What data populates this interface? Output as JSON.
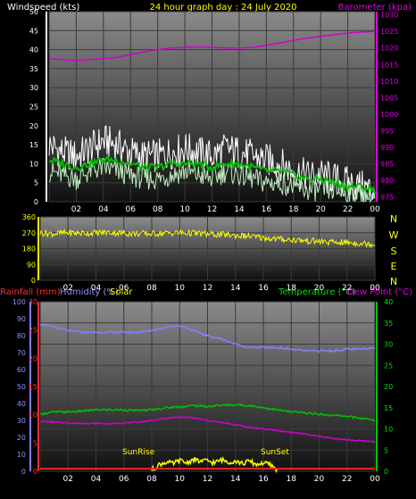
{
  "header": {
    "wind_label": "Windspeed (kts)",
    "title": "24 hour graph day : 24 July 2020",
    "baro_label": "Barometer (kpa)"
  },
  "bottom_header": {
    "rain_label": "Rainfall (mm)",
    "hum_label": "Humidity (%)",
    "solar_label": "Solar",
    "temp_label": "Temperature (°C)",
    "dew_label": "Dew Point (°C)"
  },
  "direction_letters": [
    "N",
    "W",
    "S",
    "E",
    "N"
  ],
  "annotations": {
    "sunrise": "SunRise",
    "sunset": "SunSet"
  },
  "colors": {
    "wind_gust": "#ffffff",
    "wind_avg": "#bfeebf",
    "wind_trend": "#00c000",
    "barometer": "#d000d0",
    "direction": "#ffff00",
    "humidity": "#8080ff",
    "temperature": "#00c000",
    "dewpoint": "#d000d0",
    "rainfall": "#ff2020",
    "solar": "#ffff00",
    "direction_letters": "#ffff00"
  },
  "chart_data": [
    {
      "type": "line",
      "name": "wind-barometer",
      "x_ticks": [
        "02",
        "04",
        "06",
        "08",
        "10",
        "12",
        "14",
        "16",
        "18",
        "20",
        "22",
        "00"
      ],
      "left_axis": {
        "label": "Windspeed (kts)",
        "ticks": [
          0,
          5,
          10,
          15,
          20,
          25,
          30,
          35,
          40,
          45,
          50
        ],
        "ylim": [
          0,
          50
        ]
      },
      "right_axis": {
        "label": "Barometer (kpa)",
        "ticks": [
          975,
          980,
          985,
          990,
          995,
          1000,
          1005,
          1010,
          1015,
          1020,
          1025,
          1030
        ],
        "ylim": [
          973.5,
          1031
        ]
      },
      "series": [
        {
          "key": "gust",
          "axis": "left",
          "x": [
            0,
            1,
            2,
            3,
            4,
            5,
            6,
            7,
            8,
            9,
            10,
            11,
            12,
            13,
            14,
            15,
            16,
            17,
            18,
            19,
            20,
            21,
            22,
            23,
            24
          ],
          "values": [
            15,
            13,
            12,
            14,
            16,
            15,
            13,
            12,
            12,
            13,
            14,
            13,
            12,
            14,
            13,
            12,
            11,
            10,
            8,
            7,
            7,
            6,
            5,
            4,
            3
          ]
        },
        {
          "key": "avg",
          "axis": "left",
          "x": [
            0,
            1,
            2,
            3,
            4,
            5,
            6,
            7,
            8,
            9,
            10,
            11,
            12,
            13,
            14,
            15,
            16,
            17,
            18,
            19,
            20,
            21,
            22,
            23,
            24
          ],
          "values": [
            8,
            7,
            6,
            8,
            9,
            8,
            7,
            6,
            6,
            7,
            8,
            7,
            6,
            8,
            7,
            6,
            5,
            5,
            4,
            3,
            3,
            3,
            2,
            2,
            1
          ]
        },
        {
          "key": "trend",
          "axis": "left",
          "x": [
            0,
            1,
            2,
            3,
            4,
            5,
            6,
            7,
            8,
            9,
            10,
            11,
            12,
            13,
            14,
            15,
            16,
            17,
            18,
            19,
            20,
            21,
            22,
            23,
            24
          ],
          "values": [
            11,
            10,
            9,
            10,
            11,
            11,
            10,
            9,
            9,
            10,
            10,
            10,
            9,
            10,
            10,
            9,
            8,
            8,
            7,
            6,
            6,
            5,
            4,
            4,
            3
          ]
        },
        {
          "key": "barometer",
          "axis": "right",
          "x": [
            0,
            1,
            2,
            3,
            4,
            5,
            6,
            7,
            8,
            9,
            10,
            11,
            12,
            13,
            14,
            15,
            16,
            17,
            18,
            19,
            20,
            21,
            22,
            23,
            24
          ],
          "values": [
            1016.8,
            1016.5,
            1016.2,
            1016.5,
            1016.8,
            1017.2,
            1018,
            1018.8,
            1019.5,
            1020,
            1020.2,
            1020.3,
            1020.2,
            1020,
            1020,
            1020.2,
            1020.8,
            1021.5,
            1022.3,
            1023,
            1023.5,
            1024,
            1024.5,
            1024.8,
            1025
          ]
        }
      ]
    },
    {
      "type": "line",
      "name": "wind-direction",
      "x_ticks": [
        "02",
        "04",
        "06",
        "08",
        "10",
        "12",
        "14",
        "16",
        "18",
        "20",
        "22",
        "00"
      ],
      "left_axis": {
        "ticks": [
          0,
          90,
          180,
          270,
          360
        ],
        "ylim": [
          0,
          360
        ]
      },
      "series": [
        {
          "key": "direction",
          "x": [
            0,
            1,
            2,
            3,
            4,
            5,
            6,
            7,
            8,
            9,
            10,
            11,
            12,
            13,
            14,
            15,
            16,
            17,
            18,
            19,
            20,
            21,
            22,
            23,
            24
          ],
          "values": [
            270,
            265,
            270,
            268,
            270,
            272,
            268,
            265,
            265,
            268,
            270,
            268,
            262,
            260,
            255,
            250,
            240,
            235,
            230,
            225,
            220,
            215,
            215,
            210,
            205
          ]
        }
      ]
    },
    {
      "type": "line",
      "name": "temperature-humidity",
      "x_ticks": [
        "02",
        "04",
        "06",
        "08",
        "10",
        "12",
        "14",
        "16",
        "18",
        "20",
        "22",
        "00"
      ],
      "left_axis": {
        "label": "Humidity (%)",
        "ticks": [
          0,
          10,
          20,
          30,
          40,
          50,
          60,
          70,
          80,
          90,
          100
        ],
        "ylim": [
          0,
          100
        ]
      },
      "rain_axis": {
        "label": "Rainfall (mm)",
        "ticks": [
          0,
          5,
          10,
          15,
          20,
          25,
          30
        ],
        "ylim": [
          0,
          30
        ]
      },
      "right_axis": {
        "labels": [
          "Temperature (°C)",
          "Dew Point (°C)"
        ],
        "ticks": [
          0,
          5,
          10,
          15,
          20,
          25,
          30,
          35,
          40
        ],
        "ylim": [
          0,
          40
        ]
      },
      "series": [
        {
          "key": "humidity",
          "axis": "left",
          "x": [
            0,
            1,
            2,
            3,
            4,
            5,
            6,
            7,
            8,
            9,
            10,
            11,
            12,
            13,
            14,
            15,
            16,
            17,
            18,
            19,
            20,
            21,
            22,
            23,
            24
          ],
          "values": [
            87,
            85,
            83,
            82,
            82,
            82,
            82,
            82,
            83,
            85,
            86,
            83,
            80,
            78,
            75,
            73,
            73,
            73,
            72,
            71,
            71,
            71,
            72,
            72,
            73
          ]
        },
        {
          "key": "temperature",
          "axis": "right",
          "x": [
            0,
            1,
            2,
            3,
            4,
            5,
            6,
            7,
            8,
            9,
            10,
            11,
            12,
            13,
            14,
            15,
            16,
            17,
            18,
            19,
            20,
            21,
            22,
            23,
            24
          ],
          "values": [
            13.5,
            14,
            14,
            14.2,
            14.5,
            14.5,
            14.5,
            14.3,
            14.5,
            15,
            15.2,
            15.5,
            15.3,
            15.6,
            15.7,
            15.5,
            15,
            14.5,
            14,
            13.8,
            13.5,
            13.2,
            13,
            12.5,
            12
          ]
        },
        {
          "key": "dewpoint",
          "axis": "right",
          "x": [
            0,
            1,
            2,
            3,
            4,
            5,
            6,
            7,
            8,
            9,
            10,
            11,
            12,
            13,
            14,
            15,
            16,
            17,
            18,
            19,
            20,
            21,
            22,
            23,
            24
          ],
          "values": [
            11.8,
            11.6,
            11.4,
            11.3,
            11.3,
            11.2,
            11.4,
            11.6,
            12,
            12.5,
            12.8,
            12.6,
            12,
            11.5,
            11,
            10.4,
            10,
            9.6,
            9.2,
            8.8,
            8.2,
            7.8,
            7.4,
            7.2,
            7
          ]
        },
        {
          "key": "rainfall",
          "axis": "rain",
          "x": [
            0,
            24
          ],
          "values": [
            0,
            0
          ]
        },
        {
          "key": "solar",
          "axis": "right",
          "x": [
            8,
            8.5,
            9,
            9.5,
            10,
            10.5,
            11,
            11.5,
            12,
            12.5,
            13,
            13.5,
            14,
            14.5,
            15,
            15.5,
            16,
            16.5,
            17
          ],
          "values": [
            0.3,
            1.5,
            2.2,
            1.8,
            2.5,
            2.0,
            2.8,
            2.3,
            2.5,
            2.0,
            2.7,
            2.2,
            2.5,
            1.8,
            2.4,
            1.6,
            2.0,
            1.5,
            0.3
          ]
        }
      ]
    }
  ]
}
